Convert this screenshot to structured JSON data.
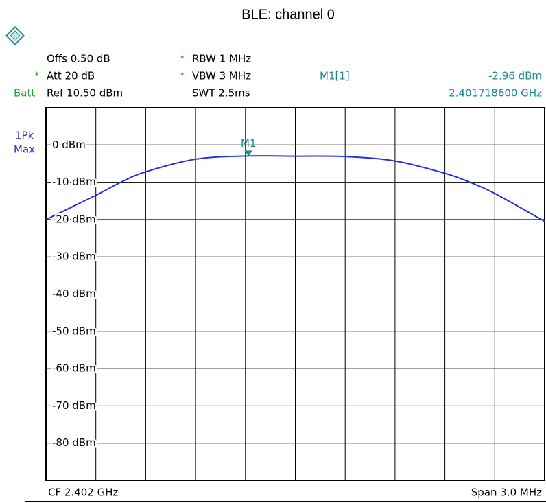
{
  "chart_data": {
    "type": "line",
    "title": "BLE: channel 0",
    "star": "*",
    "offset": "Offs 0.50 dB",
    "att": "Att  20 dB",
    "batt": "Batt",
    "ref": "Ref  10.50 dBm",
    "rbw": "RBW 1 MHz",
    "vbw": "VBW 3 MHz",
    "swt": "SWT 2.5ms",
    "trace": [
      "1Pk",
      "Max"
    ],
    "center": "CF 2.402 GHz",
    "span": "Span 3.0 MHz",
    "x": [
      2.4005,
      2.4008,
      2.40095,
      2.4011,
      2.4014,
      2.4017,
      2.402,
      2.4023,
      2.4026,
      2.4029,
      2.40305,
      2.4032,
      2.4035
    ],
    "series": [
      {
        "color": "#2233dd",
        "values": [
          -20,
          -13.5,
          -10,
          -7.2,
          -3.8,
          -2.97,
          -3.0,
          -3.1,
          -4.3,
          -7.6,
          -10,
          -13,
          -20.5
        ]
      }
    ],
    "marker": {
      "name": "M1",
      "readout_name": "M1[1]",
      "x": 2.4017186,
      "y": -2.96,
      "x_label": "2.401718600 GHz",
      "y_label": "-2.96 dBm"
    },
    "xlim": [
      2.4005,
      2.4035
    ],
    "ylim": [
      -90,
      10
    ],
    "yticks": [
      {
        "value": 0,
        "label": "0 dBm"
      },
      {
        "value": -10,
        "label": "-10 dBm"
      },
      {
        "value": -20,
        "label": "-20 dBm"
      },
      {
        "value": -30,
        "label": "-30 dBm"
      },
      {
        "value": -40,
        "label": "-40 dBm"
      },
      {
        "value": -50,
        "label": "-50 dBm"
      },
      {
        "value": -60,
        "label": "-60 dBm"
      },
      {
        "value": -70,
        "label": "-70 dBm"
      },
      {
        "value": -80,
        "label": "-80 dBm"
      }
    ],
    "grid": true
  }
}
